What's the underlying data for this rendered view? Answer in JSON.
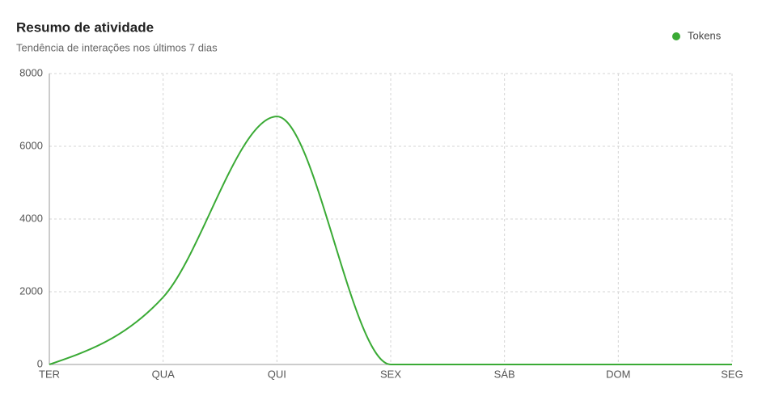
{
  "chart_data": {
    "type": "line",
    "title": "Resumo de atividade",
    "subtitle": "Tendência de interações nos últimos 7 dias",
    "categories": [
      "TER",
      "QUA",
      "QUI",
      "SEX",
      "SÁB",
      "DOM",
      "SEG"
    ],
    "series": [
      {
        "name": "Tokens",
        "color": "#3aaa35",
        "values": [
          0,
          1850,
          6820,
          0,
          0,
          0,
          0
        ]
      }
    ],
    "ylim": [
      0,
      8000
    ],
    "yticks": [
      0,
      2000,
      4000,
      6000,
      8000
    ],
    "grid": true,
    "legend": "top-right"
  }
}
